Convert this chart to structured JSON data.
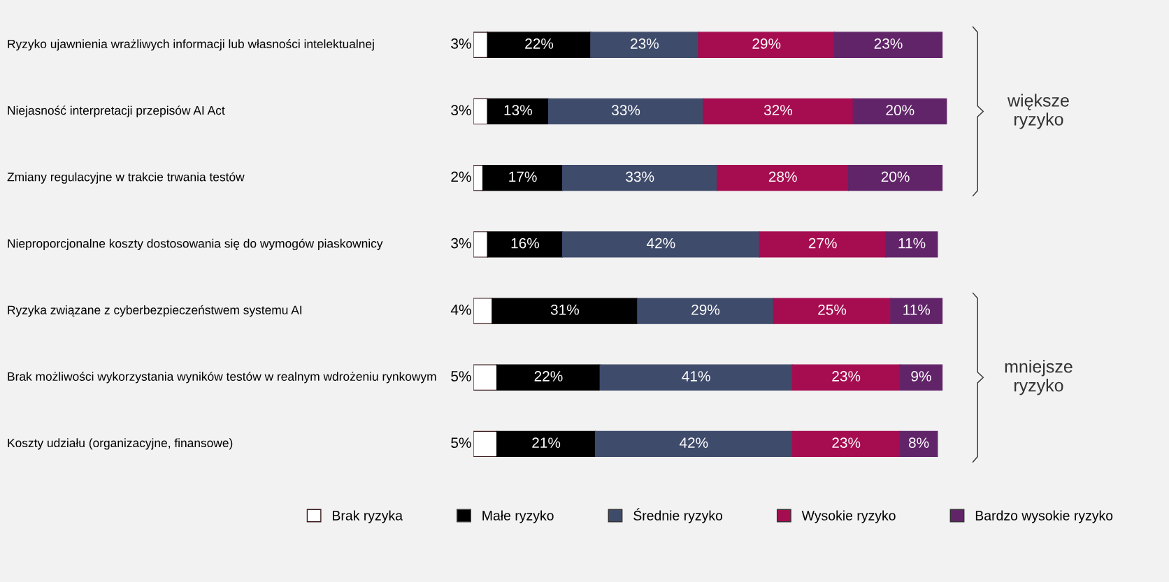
{
  "chart_data": {
    "type": "bar",
    "orientation": "horizontal",
    "stacked": true,
    "legend": "bottom",
    "categories": [
      "Ryzyko ujawnienia wrażliwych informacji lub własności intelektualnej",
      "Niejasność interpretacji przepisów AI Act",
      "Zmiany regulacyjne w trakcie trwania testów",
      "Nieproporcjonalne koszty dostosowania się do wymogów piaskownicy",
      "Ryzyka związane z cyberbezpieczeństwem systemu AI",
      "Brak możliwości wykorzystania wyników testów w realnym wdrożeniu rynkowym",
      "Koszty udziału (organizacyjne, finansowe)"
    ],
    "series": [
      {
        "name": "Brak ryzyka",
        "color": "#ffffff",
        "values": [
          3,
          3,
          2,
          3,
          4,
          5,
          5
        ],
        "value_labels": [
          "3%",
          "3%",
          "2%",
          "3%",
          "4%",
          "5%",
          "5%"
        ]
      },
      {
        "name": "Małe ryzyko",
        "color": "#000000",
        "values": [
          22,
          13,
          17,
          16,
          31,
          22,
          21
        ],
        "value_labels": [
          "22%",
          "13%",
          "17%",
          "16%",
          "31%",
          "22%",
          "21%"
        ]
      },
      {
        "name": "Średnie ryzyko",
        "color": "#3f4b6b",
        "values": [
          23,
          33,
          33,
          42,
          29,
          41,
          42
        ],
        "value_labels": [
          "23%",
          "33%",
          "33%",
          "42%",
          "29%",
          "41%",
          "42%"
        ]
      },
      {
        "name": "Wysokie ryzyko",
        "color": "#a50d50",
        "values": [
          29,
          32,
          28,
          27,
          25,
          23,
          23
        ],
        "value_labels": [
          "29%",
          "32%",
          "28%",
          "27%",
          "25%",
          "23%",
          "23%"
        ]
      },
      {
        "name": "Bardzo wysokie ryzyko",
        "color": "#612469",
        "values": [
          23,
          20,
          20,
          11,
          11,
          9,
          8
        ],
        "value_labels": [
          "23%",
          "20%",
          "20%",
          "11%",
          "11%",
          "9%",
          "8%"
        ]
      }
    ],
    "annotations": [
      "większe ryzyko",
      "mniejsze ryzyko"
    ]
  }
}
